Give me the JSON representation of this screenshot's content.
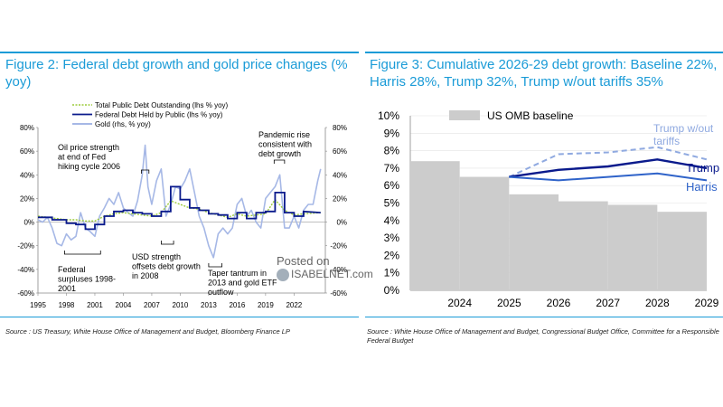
{
  "figures": {
    "fig2": {
      "title": "Figure 2: Federal debt growth and gold price changes (% yoy)",
      "source": "Source : US Treasury, White House Office of Management and Budget, Bloomberg Finance LP"
    },
    "fig3": {
      "title": "Figure 3: Cumulative 2026-29 debt growth: Baseline 22%, Harris 28%, Trump 32%, Trump w/out tariffs 35%",
      "source": "Source : White House Office of Management and Budget, Congressional Budget Office, Committee for a Responsible Federal Budget"
    }
  },
  "watermark": {
    "line1": "Posted on",
    "line2": "ISABELNET.com"
  },
  "colors": {
    "accent": "#1a9bd7",
    "debt_public": "#0a1a8c",
    "gold": "#a6b8e6",
    "total_debt": "#9ccb3b",
    "omb_bar": "#cccccc",
    "trump": "#0a1a8c",
    "harris": "#2f63c9",
    "trump_wo": "#8fa9e0",
    "grid": "#dddddd"
  },
  "chart_data": [
    {
      "type": "line",
      "title": "Federal debt growth and gold price changes (% yoy)",
      "x_ticks": [
        "1995",
        "1998",
        "2001",
        "2004",
        "2007",
        "2010",
        "2013",
        "2016",
        "2019",
        "2022"
      ],
      "xlim": [
        1995,
        2025.3
      ],
      "y_left_ticks": [
        "80%",
        "60%",
        "40%",
        "20%",
        "0%",
        "-20%",
        "-40%",
        "-60%"
      ],
      "y_right_ticks": [
        "80%",
        "60%",
        "40%",
        "20%",
        "0%",
        "-20%",
        "-40%",
        "-60%"
      ],
      "ylim": [
        -60,
        80
      ],
      "legend": [
        "Total Public Debt Outstanding (lhs % yoy)",
        "Federal Debt Held by Public (lhs % yoy)",
        "Gold (rhs, % yoy)"
      ],
      "annotations": [
        "Oil price strength at end of Fed hiking cycle 2006",
        "Pandemic rise consistent with debt growth",
        "Federal surpluses 1998-2001",
        "USD strength offsets debt growth in 2008",
        "Taper tantrum in 2013 and gold ETF outflow"
      ],
      "series": [
        {
          "name": "Federal Debt Held by Public (lhs % yoy)",
          "x": [
            1995,
            1996.5,
            1996.5,
            1998,
            1998,
            1999,
            1999,
            2000,
            2000,
            2001,
            2001,
            2002,
            2002,
            2003,
            2003,
            2004,
            2004,
            2005,
            2005,
            2006,
            2006,
            2007,
            2007,
            2008,
            2008,
            2009,
            2009,
            2010,
            2010,
            2011,
            2011,
            2012,
            2012,
            2013,
            2013,
            2014,
            2014,
            2015,
            2015,
            2016,
            2016,
            2017,
            2017,
            2018,
            2018,
            2019,
            2019,
            2020,
            2020,
            2021,
            2021,
            2022,
            2022,
            2023,
            2023,
            2024.8
          ],
          "values": [
            4,
            4,
            2,
            2,
            -1,
            -1,
            -2,
            -2,
            -6,
            -6,
            -2,
            -2,
            5,
            5,
            9,
            9,
            10,
            10,
            8,
            8,
            7,
            7,
            5,
            5,
            9,
            9,
            30,
            30,
            19,
            19,
            12,
            12,
            10,
            10,
            7,
            7,
            6,
            6,
            3,
            3,
            8,
            8,
            3,
            3,
            8,
            8,
            9,
            9,
            25,
            25,
            8,
            8,
            5,
            5,
            9,
            8
          ]
        },
        {
          "name": "Total Public Debt Outstanding (lhs % yoy)",
          "x": [
            1995,
            1996,
            1997,
            1998,
            1999,
            2000,
            2001,
            2002,
            2003,
            2004,
            2005,
            2006,
            2007,
            2008,
            2009,
            2010,
            2011,
            2012,
            2013,
            2014,
            2015,
            2016,
            2017,
            2018,
            2019,
            2020,
            2021,
            2022,
            2023,
            2024.8
          ],
          "values": [
            5,
            4,
            3,
            2,
            2,
            1,
            1,
            5,
            7,
            8,
            7,
            6,
            5,
            8,
            18,
            15,
            12,
            11,
            8,
            6,
            4,
            7,
            5,
            6,
            7,
            19,
            10,
            6,
            7,
            8
          ]
        },
        {
          "name": "Gold (rhs, % yoy)",
          "x": [
            1995,
            1995.5,
            1996,
            1996.5,
            1997,
            1997.5,
            1998,
            1998.5,
            1999,
            1999.5,
            2000,
            2000.5,
            2001,
            2001.5,
            2002,
            2002.5,
            2003,
            2003.5,
            2004,
            2004.5,
            2005,
            2005.5,
            2006,
            2006.3,
            2006.6,
            2007,
            2007.5,
            2008,
            2008.5,
            2009,
            2009.5,
            2010,
            2010.5,
            2011,
            2011.5,
            2012,
            2012.5,
            2013,
            2013.5,
            2014,
            2014.5,
            2015,
            2015.5,
            2016,
            2016.5,
            2017,
            2017.5,
            2018,
            2018.5,
            2019,
            2019.5,
            2020,
            2020.5,
            2021,
            2021.5,
            2022,
            2022.5,
            2023,
            2023.5,
            2024,
            2024.5,
            2024.8
          ],
          "values": [
            2,
            0,
            4,
            -5,
            -18,
            -20,
            -10,
            -15,
            -12,
            8,
            -5,
            -8,
            -12,
            5,
            12,
            20,
            15,
            25,
            12,
            8,
            5,
            18,
            40,
            65,
            30,
            15,
            35,
            45,
            5,
            15,
            30,
            28,
            35,
            45,
            25,
            5,
            -5,
            -20,
            -30,
            -10,
            -5,
            -10,
            -5,
            15,
            20,
            5,
            10,
            0,
            -5,
            20,
            25,
            30,
            40,
            -5,
            -5,
            5,
            -5,
            10,
            15,
            15,
            35,
            45
          ]
        }
      ]
    },
    {
      "type": "bar",
      "title": "Cumulative 2026-29 debt growth",
      "categories": [
        "2024",
        "2025",
        "2026",
        "2027",
        "2028",
        "2029"
      ],
      "y_ticks": [
        "10%",
        "9%",
        "8%",
        "7%",
        "6%",
        "5%",
        "4%",
        "3%",
        "2%",
        "1%",
        "0%"
      ],
      "ylim": [
        0,
        10
      ],
      "series": [
        {
          "name": "US OMB baseline",
          "kind": "bar",
          "values": [
            7.4,
            6.5,
            5.5,
            5.1,
            4.9,
            4.5
          ]
        },
        {
          "name": "Trump w/out tariffs",
          "kind": "dashed-line",
          "values": [
            null,
            6.5,
            7.8,
            7.9,
            8.2,
            7.5
          ]
        },
        {
          "name": "Trump",
          "kind": "line",
          "values": [
            null,
            6.5,
            6.9,
            7.1,
            7.5,
            7.0
          ]
        },
        {
          "name": "Harris",
          "kind": "line",
          "values": [
            null,
            6.5,
            6.3,
            6.5,
            6.7,
            6.3
          ]
        }
      ]
    }
  ]
}
